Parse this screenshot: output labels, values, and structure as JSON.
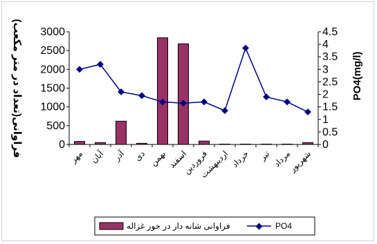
{
  "chart_data": {
    "type": "bar+line",
    "categories": [
      "مهر",
      "آبان",
      "آذر",
      "دی",
      "بهمن",
      "اسفند",
      "فروردین",
      "اردیبهشت",
      "خرداد",
      "تیر",
      "مرداد",
      "شهریور"
    ],
    "series": [
      {
        "name": "فراوانی شانه دار در خور غزاله",
        "type": "bar",
        "axis": "left",
        "color": "#993366",
        "values": [
          80,
          50,
          620,
          30,
          2840,
          2680,
          90,
          10,
          10,
          10,
          10,
          50
        ]
      },
      {
        "name": "PO4",
        "type": "line",
        "axis": "right",
        "color": "#000080",
        "values": [
          3.0,
          3.2,
          2.1,
          1.95,
          1.7,
          1.65,
          1.7,
          1.35,
          3.85,
          1.9,
          1.7,
          1.3
        ]
      }
    ],
    "ylabel": "فراوانی(تعداد در متر مکعب)",
    "y2label": "PO4(mg/l)",
    "ylim": [
      0,
      3000
    ],
    "yticks": [
      0,
      500,
      1000,
      1500,
      2000,
      2500,
      3000
    ],
    "y2lim": [
      0,
      4.5
    ],
    "y2ticks": [
      "0",
      "0.5",
      "1",
      "1.5",
      "2",
      "2.5",
      "3",
      "3.5",
      "4",
      "4.5"
    ],
    "legend": "bottom",
    "grid": false
  }
}
